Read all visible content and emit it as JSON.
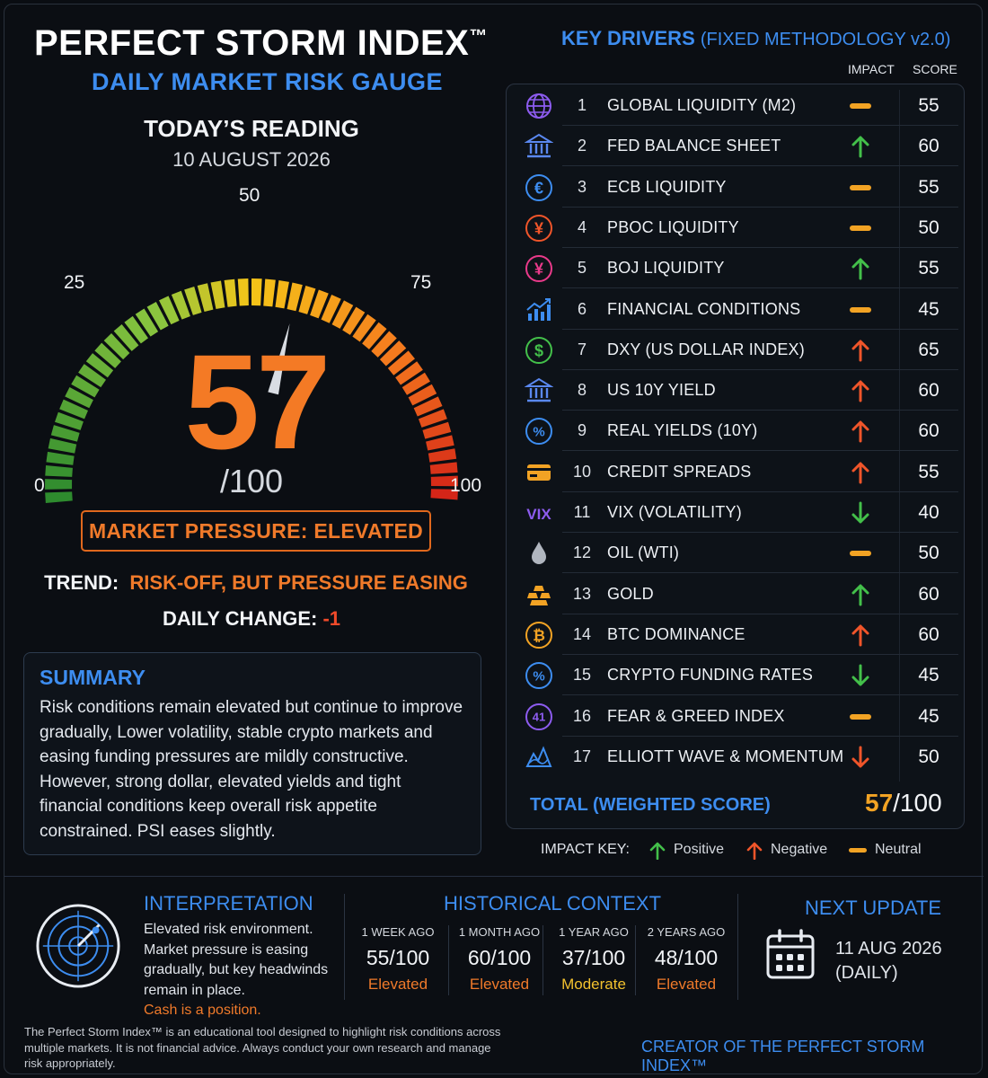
{
  "header": {
    "title": "PERFECT STORM INDEX",
    "trademark": "™",
    "subtitle": "DAILY MARKET RISK GAUGE"
  },
  "reading": {
    "label": "TODAY’S READING",
    "date": "10 AUGUST 2026",
    "value": 57,
    "value_text": "57",
    "out_of": "/100",
    "gauge_ticks": [
      "0",
      "25",
      "50",
      "75",
      "100"
    ],
    "pressure_label": "MARKET PRESSURE: ELEVATED",
    "trend_label": "TREND:",
    "trend_value": "RISK-OFF, BUT PRESSURE EASING",
    "change_label": "DAILY CHANGE:",
    "change_value": "-1"
  },
  "summary": {
    "heading": "SUMMARY",
    "text": "Risk conditions remain elevated but continue to improve gradually, Lower volatility, stable crypto markets and easing funding pressures are mildly constructive. However, strong dollar, elevated yields and tight financial conditions keep overall risk appetite constrained. PSI eases slightly."
  },
  "drivers": {
    "title": "KEY DRIVERS",
    "methodology": "(FIXED METHODOLOGY v2.0)",
    "impact_header": "IMPACT",
    "score_header": "SCORE",
    "rows": [
      {
        "num": "1",
        "name": "GLOBAL LIQUIDITY (M2)",
        "impact": "neutral",
        "score": "55",
        "icon": "globe-icon"
      },
      {
        "num": "2",
        "name": "FED BALANCE SHEET",
        "impact": "positive",
        "score": "60",
        "icon": "bank-icon"
      },
      {
        "num": "3",
        "name": "ECB LIQUIDITY",
        "impact": "neutral",
        "score": "55",
        "icon": "euro-icon"
      },
      {
        "num": "4",
        "name": "PBOC LIQUIDITY",
        "impact": "neutral",
        "score": "50",
        "icon": "yuan-icon"
      },
      {
        "num": "5",
        "name": "BOJ LIQUIDITY",
        "impact": "positive",
        "score": "55",
        "icon": "yen-icon"
      },
      {
        "num": "6",
        "name": "FINANCIAL CONDITIONS",
        "impact": "neutral",
        "score": "45",
        "icon": "growth-chart-icon"
      },
      {
        "num": "7",
        "name": "DXY (US DOLLAR INDEX)",
        "impact": "negative",
        "score": "65",
        "icon": "dollar-icon"
      },
      {
        "num": "8",
        "name": "US 10Y YIELD",
        "impact": "negative",
        "score": "60",
        "icon": "bank-icon"
      },
      {
        "num": "9",
        "name": "REAL YIELDS (10Y)",
        "impact": "negative",
        "score": "60",
        "icon": "percent-icon"
      },
      {
        "num": "10",
        "name": "CREDIT SPREADS",
        "impact": "negative",
        "score": "55",
        "icon": "credit-card-icon"
      },
      {
        "num": "11",
        "name": "VIX (VOLATILITY)",
        "impact": "positive-down",
        "score": "40",
        "icon": "vix-icon"
      },
      {
        "num": "12",
        "name": "OIL (WTI)",
        "impact": "neutral",
        "score": "50",
        "icon": "oil-drop-icon"
      },
      {
        "num": "13",
        "name": "GOLD",
        "impact": "positive",
        "score": "60",
        "icon": "gold-bars-icon"
      },
      {
        "num": "14",
        "name": "BTC DOMINANCE",
        "impact": "negative",
        "score": "60",
        "icon": "bitcoin-icon"
      },
      {
        "num": "15",
        "name": "CRYPTO FUNDING RATES",
        "impact": "positive-down",
        "score": "45",
        "icon": "percent-icon"
      },
      {
        "num": "16",
        "name": "FEAR & GREED INDEX",
        "impact": "neutral",
        "score": "45",
        "icon": "fear-greed-icon"
      },
      {
        "num": "17",
        "name": "ELLIOTT WAVE & MOMENTUM",
        "impact": "negative-down",
        "score": "50",
        "icon": "wave-icon"
      }
    ],
    "total_label": "TOTAL (WEIGHTED SCORE)",
    "total_value": "57",
    "total_out_of": "/100"
  },
  "impact_key": {
    "label": "IMPACT KEY:",
    "positive": "Positive",
    "negative": "Negative",
    "neutral": "Neutral"
  },
  "interpretation": {
    "heading": "INTERPRETATION",
    "text": "Elevated risk environment. Market pressure is easing gradually, but key headwinds remain in place.",
    "highlight": "Cash is a position."
  },
  "history": {
    "heading": "HISTORICAL CONTEXT",
    "items": [
      {
        "period": "1 WEEK AGO",
        "value": "55/100",
        "status": "Elevated"
      },
      {
        "period": "1 MONTH AGO",
        "value": "60/100",
        "status": "Elevated"
      },
      {
        "period": "1 YEAR AGO",
        "value": "37/100",
        "status": "Moderate"
      },
      {
        "period": "2 YEARS AGO",
        "value": "48/100",
        "status": "Elevated"
      }
    ]
  },
  "next_update": {
    "heading": "NEXT UPDATE",
    "date": "11 AUG 2026",
    "frequency": "(DAILY)"
  },
  "footer": {
    "disclaimer": "The Perfect Storm Index™ is an educational tool designed to highlight risk conditions across multiple markets. It is not financial advice. Always conduct your own research and manage risk appropriately.",
    "creator": "CREATOR OF THE PERFECT STORM INDEX™"
  },
  "colors": {
    "accent": "#3d8df0",
    "orange": "#f47a25",
    "positive": "#43c04a",
    "negative": "#f0552a",
    "neutral": "#f2a324",
    "elevated": "#f07a2a",
    "moderate": "#f2c12e"
  }
}
